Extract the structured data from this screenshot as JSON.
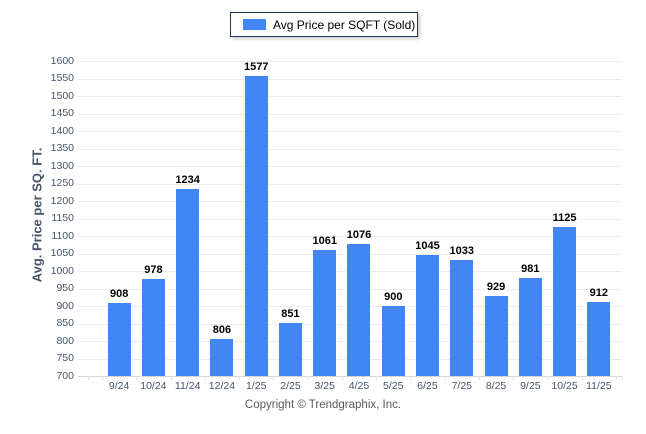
{
  "legend": {
    "label": "Avg Price per SQFT (Sold)",
    "swatch_color": "#4285f4"
  },
  "chart_data": {
    "type": "bar",
    "categories": [
      "9/24",
      "10/24",
      "11/24",
      "12/24",
      "1/25",
      "2/25",
      "3/25",
      "4/25",
      "5/25",
      "6/25",
      "7/25",
      "8/25",
      "9/25",
      "10/25",
      "11/25"
    ],
    "values": [
      908,
      978,
      1234,
      806,
      1577,
      851,
      1061,
      1076,
      900,
      1045,
      1033,
      929,
      981,
      1125,
      912
    ],
    "title": "Avg Price per SQFT (Sold)",
    "xlabel": "",
    "ylabel": "Avg. Price per SQ. FT.",
    "ylim": [
      700,
      1600
    ],
    "ytick_step": 50,
    "grid": true,
    "legend_position": "top-center",
    "bar_color": "#4285f4",
    "value_labels": true
  },
  "footer": {
    "copyright": "Copyright © Trendgraphix, Inc."
  }
}
